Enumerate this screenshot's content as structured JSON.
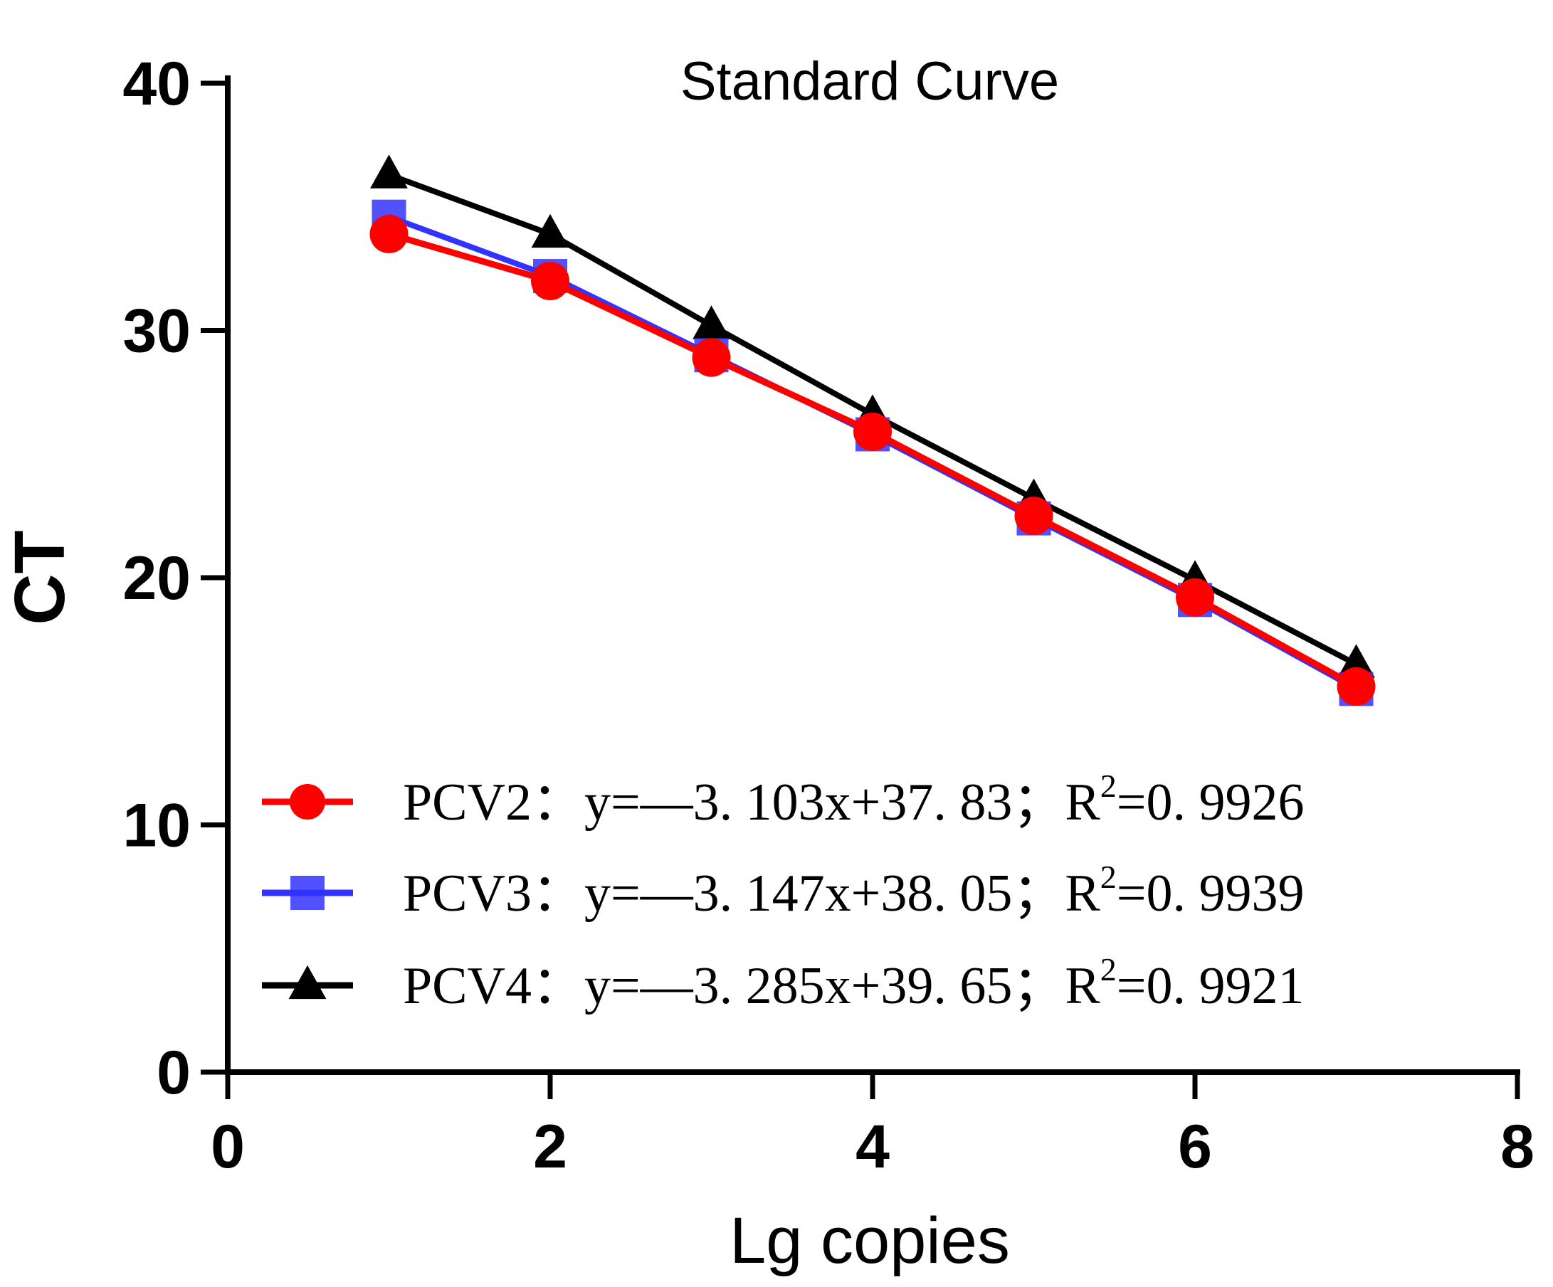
{
  "chart_data": {
    "type": "line",
    "title": "Standard Curve",
    "xlabel": "Lg copies",
    "ylabel": "CT",
    "xlim": [
      0,
      8
    ],
    "ylim": [
      0,
      40
    ],
    "xticks": [
      "0",
      "2",
      "4",
      "6",
      "8"
    ],
    "yticks": [
      "0",
      "10",
      "20",
      "30",
      "40"
    ],
    "legend_position": "bottom-left",
    "series": [
      {
        "name": "PCV4",
        "color": "#000000",
        "marker": "triangle",
        "x": [
          1,
          2,
          3,
          4,
          5,
          6,
          7
        ],
        "y": [
          36.3,
          33.9,
          30.2,
          26.6,
          23.2,
          19.9,
          16.5
        ],
        "legend_prefix": "PCV4：y=—3. 285x+39. 65；R",
        "legend_sup": "2",
        "legend_suffix": "=0. 9921"
      },
      {
        "name": "PCV3",
        "color": "#3333ff",
        "marker": "square",
        "x": [
          1,
          2,
          3,
          4,
          5,
          6,
          7
        ],
        "y": [
          34.6,
          32.2,
          29.0,
          25.8,
          22.4,
          19.1,
          15.5
        ],
        "legend_prefix": "PCV3：y=—3. 147x+38. 05；R",
        "legend_sup": "2",
        "legend_suffix": "=0. 9939"
      },
      {
        "name": "PCV2",
        "color": "#ff0000",
        "marker": "circle",
        "x": [
          1,
          2,
          3,
          4,
          5,
          6,
          7
        ],
        "y": [
          33.9,
          32.0,
          28.9,
          25.9,
          22.5,
          19.2,
          15.6
        ],
        "legend_prefix": "PCV2：y=—3. 103x+37. 83；R",
        "legend_sup": "2",
        "legend_suffix": "=0. 9926"
      }
    ],
    "legend_order": [
      "PCV2",
      "PCV3",
      "PCV4"
    ]
  }
}
